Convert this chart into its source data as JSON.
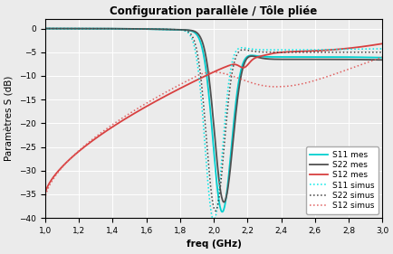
{
  "title": "Configuration parallèle / Tôle pliée",
  "xlabel": "freq (GHz)",
  "ylabel": "Paramètres S (dB)",
  "xlim": [
    1.0,
    3.0
  ],
  "ylim": [
    -40,
    2
  ],
  "yticks": [
    0,
    -5,
    -10,
    -15,
    -20,
    -25,
    -30,
    -35,
    -40
  ],
  "xticks": [
    1.0,
    1.2,
    1.4,
    1.6,
    1.8,
    2.0,
    2.2,
    2.4,
    2.6,
    2.8,
    3.0
  ],
  "colors": {
    "S11_mes": "#00d0d0",
    "S22_mes": "#505050",
    "S12_mes": "#d84040",
    "S11_simus": "#00e8e8",
    "S22_simus": "#404040",
    "S12_simus": "#e06060"
  },
  "bg_color": "#ebebeb",
  "grid_color": "#ffffff"
}
